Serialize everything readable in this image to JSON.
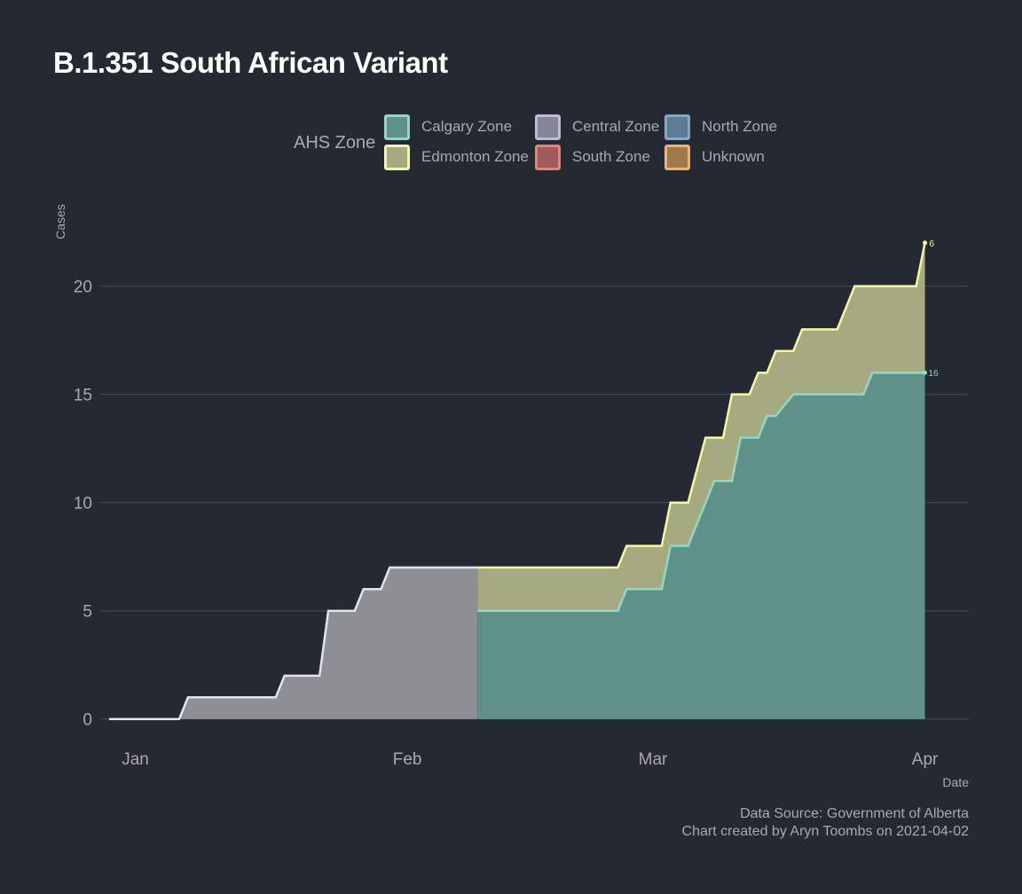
{
  "chart_data": {
    "type": "area",
    "title": "B.1.351 South African Variant",
    "xlabel": "Date",
    "ylabel": "Cases",
    "x_ticks": [
      "Jan",
      "Feb",
      "Mar",
      "Apr"
    ],
    "x_tick_dates": [
      "2021-01-01",
      "2021-02-01",
      "2021-03-01",
      "2021-04-01"
    ],
    "x_range": [
      "2020-12-28",
      "2021-04-06"
    ],
    "ylim": [
      -1.2,
      24
    ],
    "y_ticks": [
      0,
      5,
      10,
      15,
      20
    ],
    "grid": true,
    "stacked": true,
    "legend": {
      "title": "AHS Zone",
      "position": "top",
      "items": [
        {
          "name": "Calgary Zone",
          "fill": "#5f9189",
          "stroke": "#8fd8cc"
        },
        {
          "name": "Central Zone",
          "fill": "#868499",
          "stroke": "#bfbcd8"
        },
        {
          "name": "North Zone",
          "fill": "#5d7b93",
          "stroke": "#7fa9cc"
        },
        {
          "name": "Edmonton Zone",
          "fill": "#a6aa81",
          "stroke": "#f7f7a3"
        },
        {
          "name": "South Zone",
          "fill": "#a05a5c",
          "stroke": "#f07f72"
        },
        {
          "name": "Unknown",
          "fill": "#a0774f",
          "stroke": "#f5b062"
        }
      ]
    },
    "series": [
      {
        "name": "Calgary Zone",
        "fill": "#5f9189",
        "stroke": "#8fd8cc",
        "points": [
          [
            "2021-02-09",
            5
          ],
          [
            "2021-02-25",
            5
          ],
          [
            "2021-02-26",
            6
          ],
          [
            "2021-03-02",
            6
          ],
          [
            "2021-03-03",
            8
          ],
          [
            "2021-03-05",
            8
          ],
          [
            "2021-03-08",
            11
          ],
          [
            "2021-03-10",
            11
          ],
          [
            "2021-03-11",
            13
          ],
          [
            "2021-03-13",
            13
          ],
          [
            "2021-03-14",
            14
          ],
          [
            "2021-03-15",
            14
          ],
          [
            "2021-03-17",
            15
          ],
          [
            "2021-03-25",
            15
          ],
          [
            "2021-03-26",
            16
          ],
          [
            "2021-04-01",
            16
          ]
        ],
        "end_label": "16"
      },
      {
        "name": "Edmonton Zone",
        "fill": "#a6aa81",
        "stroke": "#f7f7a3",
        "stack_on": "Calgary Zone",
        "cumulative_top": [
          [
            "2021-02-09",
            7
          ],
          [
            "2021-02-25",
            7
          ],
          [
            "2021-02-26",
            8
          ],
          [
            "2021-03-02",
            8
          ],
          [
            "2021-03-03",
            10
          ],
          [
            "2021-03-05",
            10
          ],
          [
            "2021-03-07",
            13
          ],
          [
            "2021-03-09",
            13
          ],
          [
            "2021-03-10",
            15
          ],
          [
            "2021-03-12",
            15
          ],
          [
            "2021-03-13",
            16
          ],
          [
            "2021-03-14",
            16
          ],
          [
            "2021-03-15",
            17
          ],
          [
            "2021-03-17",
            17
          ],
          [
            "2021-03-18",
            18
          ],
          [
            "2021-03-22",
            18
          ],
          [
            "2021-03-24",
            20
          ],
          [
            "2021-03-31",
            20
          ],
          [
            "2021-04-01",
            22
          ]
        ],
        "end_label": "6"
      },
      {
        "name": "Central Zone",
        "fill": "#8e8f95",
        "stroke": "#e3e3ec",
        "points": [
          [
            "2020-12-29",
            0
          ],
          [
            "2021-01-06",
            0
          ],
          [
            "2021-01-07",
            1
          ],
          [
            "2021-01-17",
            1
          ],
          [
            "2021-01-18",
            2
          ],
          [
            "2021-01-22",
            2
          ],
          [
            "2021-01-23",
            5
          ],
          [
            "2021-01-26",
            5
          ],
          [
            "2021-01-27",
            6
          ],
          [
            "2021-01-29",
            6
          ],
          [
            "2021-01-30",
            7
          ],
          [
            "2021-02-09",
            7
          ]
        ]
      }
    ]
  },
  "caption": {
    "line1": "Data Source: Government of Alberta",
    "line2": "Chart created by Aryn Toombs on 2021-04-02"
  }
}
